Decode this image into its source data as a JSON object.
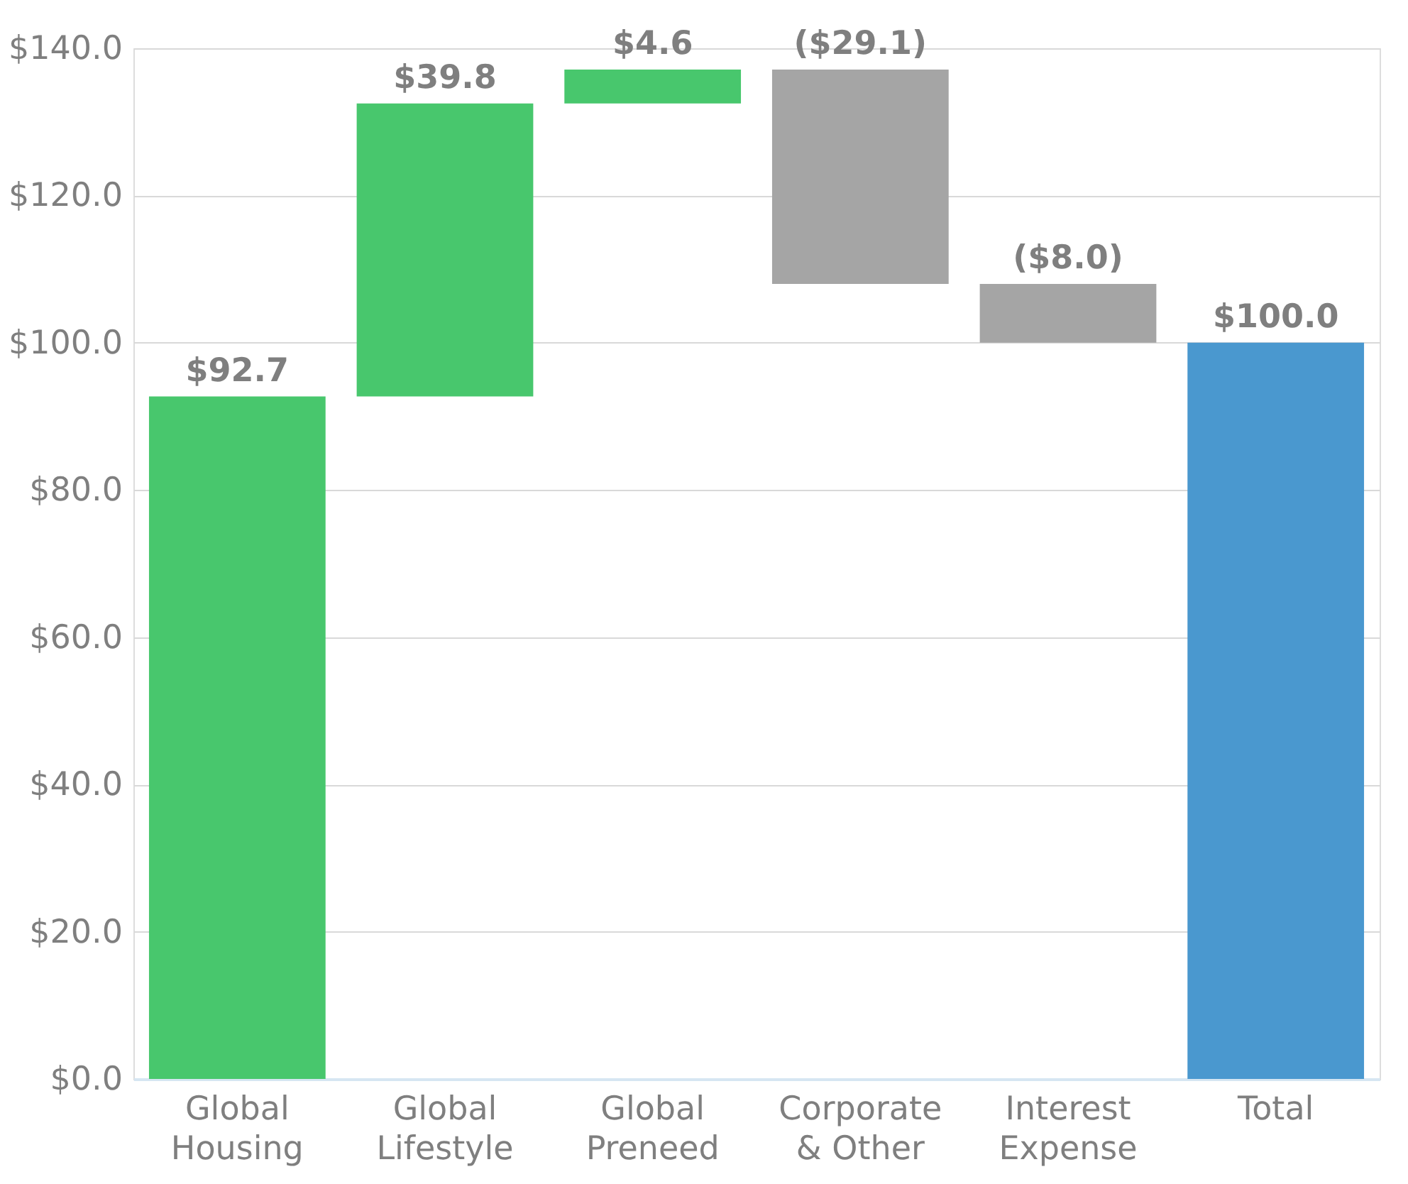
{
  "chart_data": {
    "type": "bar",
    "categories": [
      "Global\nHousing",
      "Global\nLifestyle",
      "Global\nPreneed",
      "Corporate\n& Other",
      "Interest\nExpense",
      "Total"
    ],
    "values": [
      92.7,
      39.8,
      4.6,
      -29.1,
      -8.0,
      100.0
    ],
    "base": [
      0,
      92.7,
      132.5,
      137.1,
      108.0,
      0
    ],
    "colors": [
      "#48c76d",
      "#48c76d",
      "#48c76d",
      "#a5a5a5",
      "#a5a5a5",
      "#4a98cf"
    ],
    "value_labels": [
      "$92.7",
      "$39.8",
      "$4.6",
      "($29.1)",
      "($8.0)",
      "$100.0"
    ],
    "ylim": [
      0,
      140
    ],
    "yticks": [
      {
        "value": 0,
        "label": "$0.0"
      },
      {
        "value": 20,
        "label": "$20.0"
      },
      {
        "value": 40,
        "label": "$40.0"
      },
      {
        "value": 60,
        "label": "$60.0"
      },
      {
        "value": 80,
        "label": "$80.0"
      },
      {
        "value": 100,
        "label": "$100.0"
      },
      {
        "value": 120,
        "label": "$120.0"
      },
      {
        "value": 140,
        "label": "$140.0"
      }
    ],
    "grid": "y"
  }
}
